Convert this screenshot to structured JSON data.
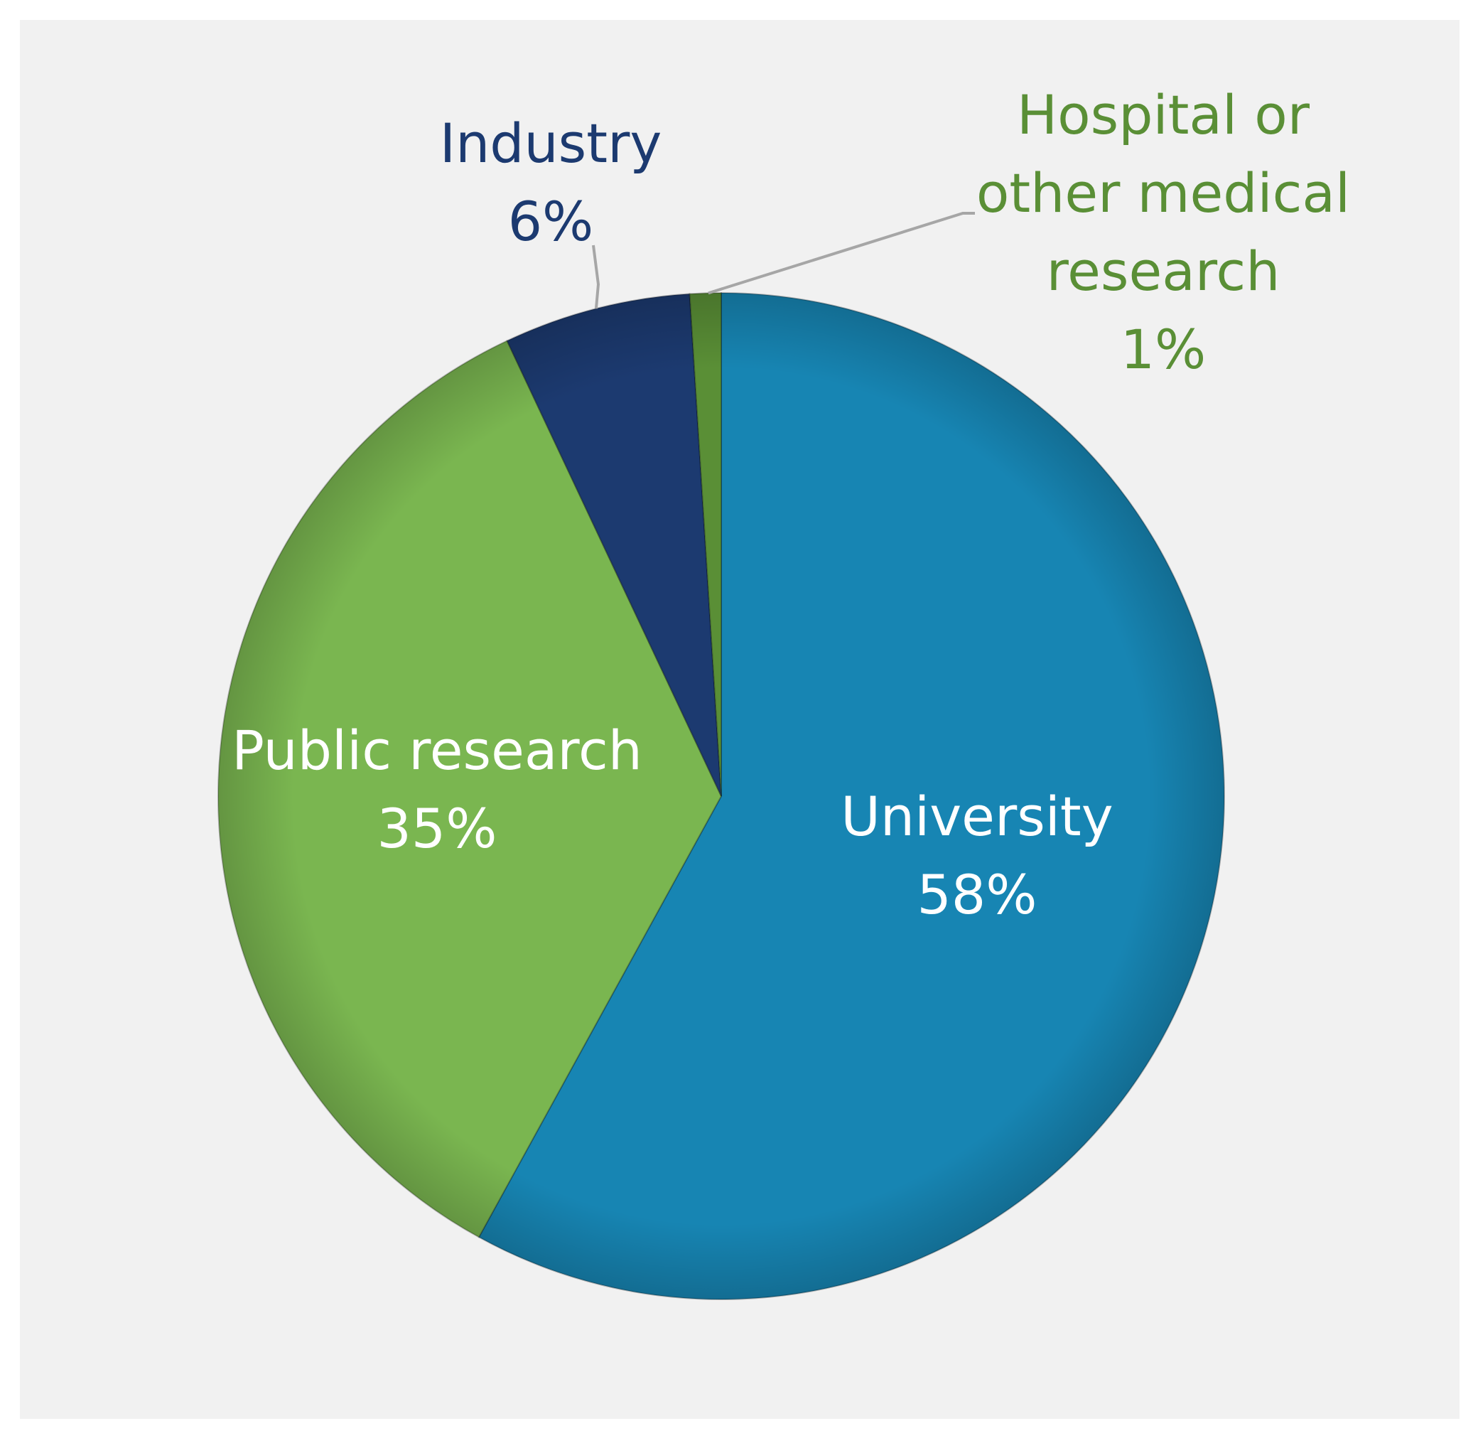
{
  "chart_data": {
    "type": "pie",
    "start_angle_deg": 0,
    "direction": "clockwise",
    "slices": [
      {
        "label": "University",
        "value": 58,
        "display": "58%",
        "color": "#1785B3",
        "label_color": "#FFFFFF"
      },
      {
        "label": "Public research",
        "value": 35,
        "display": "35%",
        "color": "#7AB650",
        "label_color": "#FFFFFF"
      },
      {
        "label": "Industry",
        "value": 6,
        "display": "6%",
        "color": "#1C3A70",
        "label_color": "#1C3A70"
      },
      {
        "label": "Hospital or other medical research",
        "label_lines": [
          "Hospital or",
          "other medical",
          "research"
        ],
        "value": 1,
        "display": "1%",
        "color": "#5A8F36",
        "label_color": "#5A8F36"
      }
    ],
    "background_color": "#F1F1F1",
    "leader_line_color": "#A6A6A6",
    "legend": "none",
    "title": ""
  }
}
